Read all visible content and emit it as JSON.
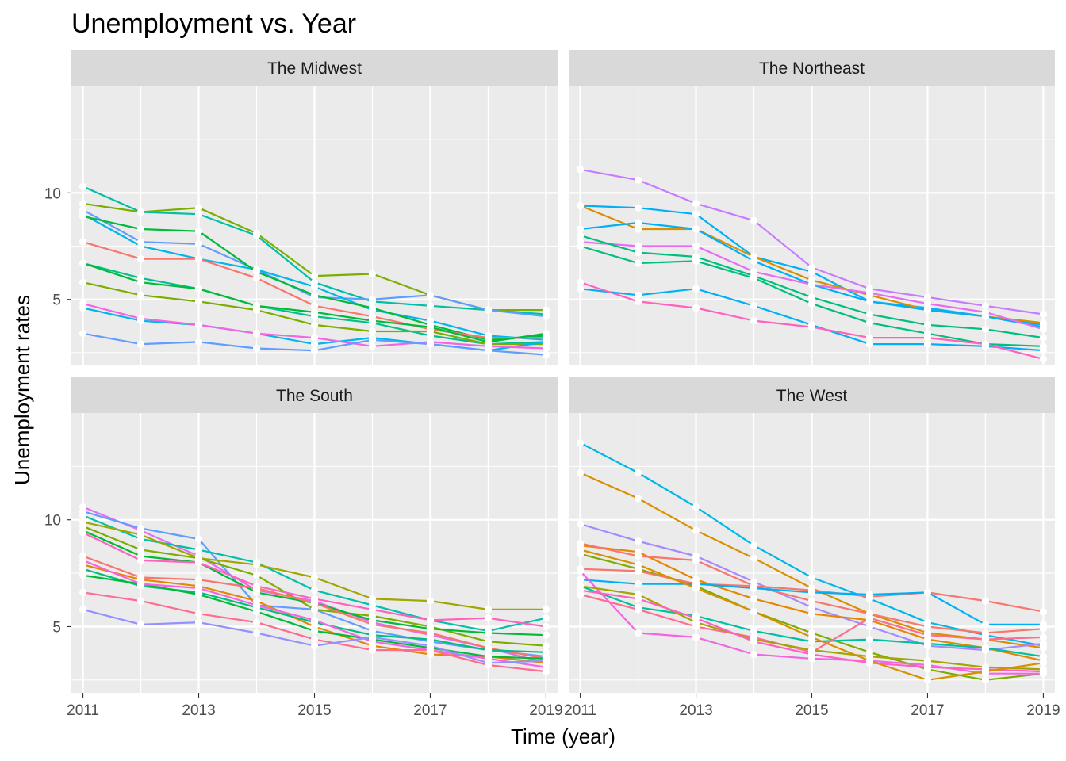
{
  "chart_data": {
    "type": "line",
    "title": "Unemployment vs. Year",
    "xlabel": "Time (year)",
    "ylabel": "Unemployment rates",
    "x": [
      2011,
      2012,
      2013,
      2014,
      2015,
      2016,
      2017,
      2018,
      2019
    ],
    "xticks": [
      2011,
      2013,
      2015,
      2017,
      2019
    ],
    "yticks": [
      5,
      10
    ],
    "xlim": [
      2010.8,
      2019.2
    ],
    "ylim": [
      1.9,
      15.0
    ],
    "grid": true,
    "legend": "none",
    "point_color": "#ffffff",
    "panel_background": "#ebebeb",
    "strip_background": "#d9d9d9",
    "grid_color": "#ffffff",
    "facets": [
      {
        "name": "The Midwest",
        "series": [
          {
            "color": "#00BFA5",
            "values": [
              10.3,
              9.1,
              9.0,
              8.0,
              5.8,
              4.9,
              4.7,
              4.5,
              4.3
            ]
          },
          {
            "color": "#7CAE00",
            "values": [
              9.5,
              9.1,
              9.3,
              8.1,
              6.1,
              6.2,
              5.2,
              4.5,
              4.5
            ]
          },
          {
            "color": "#619CFF",
            "values": [
              9.2,
              7.7,
              7.6,
              6.4,
              5.1,
              5.0,
              5.2,
              4.5,
              4.2
            ]
          },
          {
            "color": "#00B6EB",
            "values": [
              9.0,
              7.5,
              6.9,
              6.4,
              5.6,
              4.5,
              4.0,
              3.3,
              3.1
            ]
          },
          {
            "color": "#00BA38",
            "values": [
              8.9,
              8.3,
              8.2,
              6.3,
              5.2,
              4.6,
              3.8,
              3.1,
              3.3
            ]
          },
          {
            "color": "#F8766D",
            "values": [
              7.7,
              6.9,
              6.9,
              6.0,
              4.7,
              4.2,
              3.6,
              3.2,
              3.2
            ]
          },
          {
            "color": "#00C08B",
            "values": [
              6.7,
              6.0,
              5.5,
              4.7,
              4.2,
              3.9,
              3.3,
              2.9,
              3.0
            ]
          },
          {
            "color": "#00BA38",
            "values": [
              6.7,
              5.8,
              5.5,
              4.7,
              4.4,
              4.0,
              3.7,
              3.0,
              3.4
            ]
          },
          {
            "color": "#7CAE00",
            "values": [
              5.8,
              5.2,
              4.9,
              4.5,
              3.8,
              3.5,
              3.5,
              2.9,
              2.9
            ]
          },
          {
            "color": "#00B6EB",
            "values": [
              4.6,
              4.0,
              3.8,
              3.4,
              2.9,
              3.2,
              2.9,
              2.6,
              3.0
            ]
          },
          {
            "color": "#F564E3",
            "values": [
              4.8,
              4.1,
              3.8,
              3.4,
              3.2,
              2.8,
              3.0,
              2.8,
              2.7
            ]
          },
          {
            "color": "#619CFF",
            "values": [
              3.4,
              2.9,
              3.0,
              2.7,
              2.6,
              3.1,
              2.9,
              2.6,
              2.4
            ]
          }
        ]
      },
      {
        "name": "The Northeast",
        "series": [
          {
            "color": "#C77CFF",
            "values": [
              11.1,
              10.6,
              9.5,
              8.7,
              6.5,
              5.5,
              5.1,
              4.7,
              4.3
            ]
          },
          {
            "color": "#00B0F6",
            "values": [
              9.4,
              9.3,
              9.0,
              7.0,
              6.3,
              4.9,
              4.6,
              4.2,
              3.8
            ]
          },
          {
            "color": "#D89000",
            "values": [
              9.4,
              8.3,
              8.3,
              7.0,
              5.9,
              5.2,
              4.5,
              4.2,
              3.9
            ]
          },
          {
            "color": "#00B0F6",
            "values": [
              8.3,
              8.6,
              8.3,
              6.8,
              5.7,
              4.9,
              4.5,
              4.2,
              3.7
            ]
          },
          {
            "color": "#E76BF3",
            "values": [
              7.7,
              7.5,
              7.5,
              6.3,
              5.7,
              5.3,
              4.8,
              4.4,
              3.6
            ]
          },
          {
            "color": "#00BF7D",
            "values": [
              8.0,
              7.2,
              7.0,
              6.1,
              5.1,
              4.3,
              3.8,
              3.6,
              3.2
            ]
          },
          {
            "color": "#00BF7D",
            "values": [
              7.5,
              6.7,
              6.8,
              6.0,
              4.8,
              3.9,
              3.4,
              2.9,
              2.8
            ]
          },
          {
            "color": "#00B0F6",
            "values": [
              5.5,
              5.2,
              5.5,
              4.7,
              3.8,
              2.9,
              2.9,
              2.8,
              2.6
            ]
          },
          {
            "color": "#FF62BC",
            "values": [
              5.8,
              4.9,
              4.6,
              4.0,
              3.7,
              3.2,
              3.2,
              2.9,
              2.2
            ]
          }
        ]
      },
      {
        "name": "The South",
        "series": [
          {
            "color": "#E76BF3",
            "values": [
              10.6,
              9.5,
              8.3,
              6.7,
              6.2,
              5.2,
              4.6,
              4.0,
              3.3
            ]
          },
          {
            "color": "#619CFF",
            "values": [
              10.4,
              9.6,
              9.1,
              6.0,
              5.8,
              4.8,
              4.3,
              3.9,
              3.6
            ]
          },
          {
            "color": "#00C1A9",
            "values": [
              10.2,
              9.1,
              8.6,
              8.0,
              6.7,
              6.0,
              5.3,
              4.8,
              5.4
            ]
          },
          {
            "color": "#A3A500",
            "values": [
              9.9,
              9.3,
              8.2,
              7.9,
              7.3,
              6.3,
              6.2,
              5.8,
              5.8
            ]
          },
          {
            "color": "#7CAE00",
            "values": [
              9.7,
              8.6,
              8.2,
              7.4,
              5.8,
              5.5,
              5.0,
              4.3,
              4.1
            ]
          },
          {
            "color": "#00BA38",
            "values": [
              9.5,
              8.3,
              8.0,
              6.6,
              6.1,
              5.3,
              4.9,
              4.7,
              4.6
            ]
          },
          {
            "color": "#FF62BC",
            "values": [
              9.4,
              8.1,
              8.0,
              6.9,
              6.3,
              5.8,
              5.3,
              5.4,
              5.0
            ]
          },
          {
            "color": "#F8766D",
            "values": [
              8.3,
              7.3,
              7.2,
              6.8,
              6.1,
              5.1,
              4.7,
              4.0,
              3.5
            ]
          },
          {
            "color": "#E58700",
            "values": [
              7.9,
              7.2,
              6.9,
              6.2,
              5.0,
              4.1,
              3.7,
              3.6,
              3.3
            ]
          },
          {
            "color": "#00BF7D",
            "values": [
              7.7,
              6.9,
              6.6,
              5.9,
              5.2,
              4.6,
              4.4,
              3.9,
              3.8
            ]
          },
          {
            "color": "#00BA38",
            "values": [
              7.4,
              7.0,
              6.5,
              5.7,
              4.8,
              4.4,
              4.0,
              3.6,
              3.5
            ]
          },
          {
            "color": "#F564E3",
            "values": [
              8.1,
              7.0,
              6.8,
              6.0,
              5.3,
              4.3,
              3.9,
              3.5,
              3.1
            ]
          },
          {
            "color": "#FF6C91",
            "values": [
              6.6,
              6.2,
              5.6,
              5.2,
              4.4,
              3.9,
              3.9,
              3.2,
              2.9
            ]
          },
          {
            "color": "#9590FF",
            "values": [
              5.8,
              5.1,
              5.2,
              4.7,
              4.1,
              4.5,
              4.1,
              3.3,
              3.4
            ]
          }
        ]
      },
      {
        "name": "The West",
        "series": [
          {
            "color": "#00B8E7",
            "values": [
              13.6,
              12.2,
              10.6,
              8.8,
              7.3,
              6.3,
              5.2,
              4.6,
              4.1
            ]
          },
          {
            "color": "#D89000",
            "values": [
              12.2,
              11.0,
              9.5,
              8.2,
              6.8,
              5.6,
              4.7,
              4.4,
              4.0
            ]
          },
          {
            "color": "#A58AFF",
            "values": [
              9.8,
              9.0,
              8.3,
              7.1,
              5.9,
              5.0,
              4.1,
              3.9,
              4.2
            ]
          },
          {
            "color": "#E58700",
            "values": [
              8.8,
              8.5,
              7.2,
              6.3,
              5.6,
              5.3,
              4.4,
              4.0,
              3.4
            ]
          },
          {
            "color": "#F8766D",
            "values": [
              8.9,
              8.3,
              8.1,
              6.9,
              6.2,
              5.6,
              5.0,
              4.7,
              4.9
            ]
          },
          {
            "color": "#7CAE00",
            "values": [
              8.4,
              7.7,
              6.9,
              5.7,
              4.7,
              3.8,
              3.0,
              2.5,
              2.8
            ]
          },
          {
            "color": "#F8766D",
            "values": [
              7.7,
              7.6,
              7.0,
              6.9,
              6.7,
              6.4,
              6.6,
              6.2,
              5.7
            ]
          },
          {
            "color": "#00B0F6",
            "values": [
              7.2,
              7.0,
              7.0,
              6.8,
              6.6,
              6.5,
              6.6,
              5.1,
              5.1
            ]
          },
          {
            "color": "#F564E3",
            "values": [
              7.6,
              4.7,
              4.5,
              3.7,
              3.5,
              3.4,
              3.2,
              2.8,
              2.8
            ]
          },
          {
            "color": "#00C19F",
            "values": [
              6.9,
              5.9,
              5.5,
              4.8,
              4.3,
              4.4,
              4.2,
              4.0,
              3.6
            ]
          },
          {
            "color": "#FF6C91",
            "values": [
              6.5,
              5.8,
              5.0,
              4.5,
              3.8,
              5.4,
              4.6,
              4.4,
              4.5
            ]
          },
          {
            "color": "#A3A500",
            "values": [
              6.9,
              6.5,
              5.2,
              4.4,
              3.9,
              3.6,
              3.4,
              3.1,
              3.0
            ]
          },
          {
            "color": "#FF61C3",
            "values": [
              6.7,
              6.3,
              5.4,
              4.3,
              3.7,
              3.3,
              3.1,
              3.0,
              2.9
            ]
          },
          {
            "color": "#D89000",
            "values": [
              8.6,
              7.9,
              6.8,
              5.7,
              4.5,
              3.4,
              2.5,
              2.9,
              3.3
            ]
          }
        ]
      }
    ]
  }
}
